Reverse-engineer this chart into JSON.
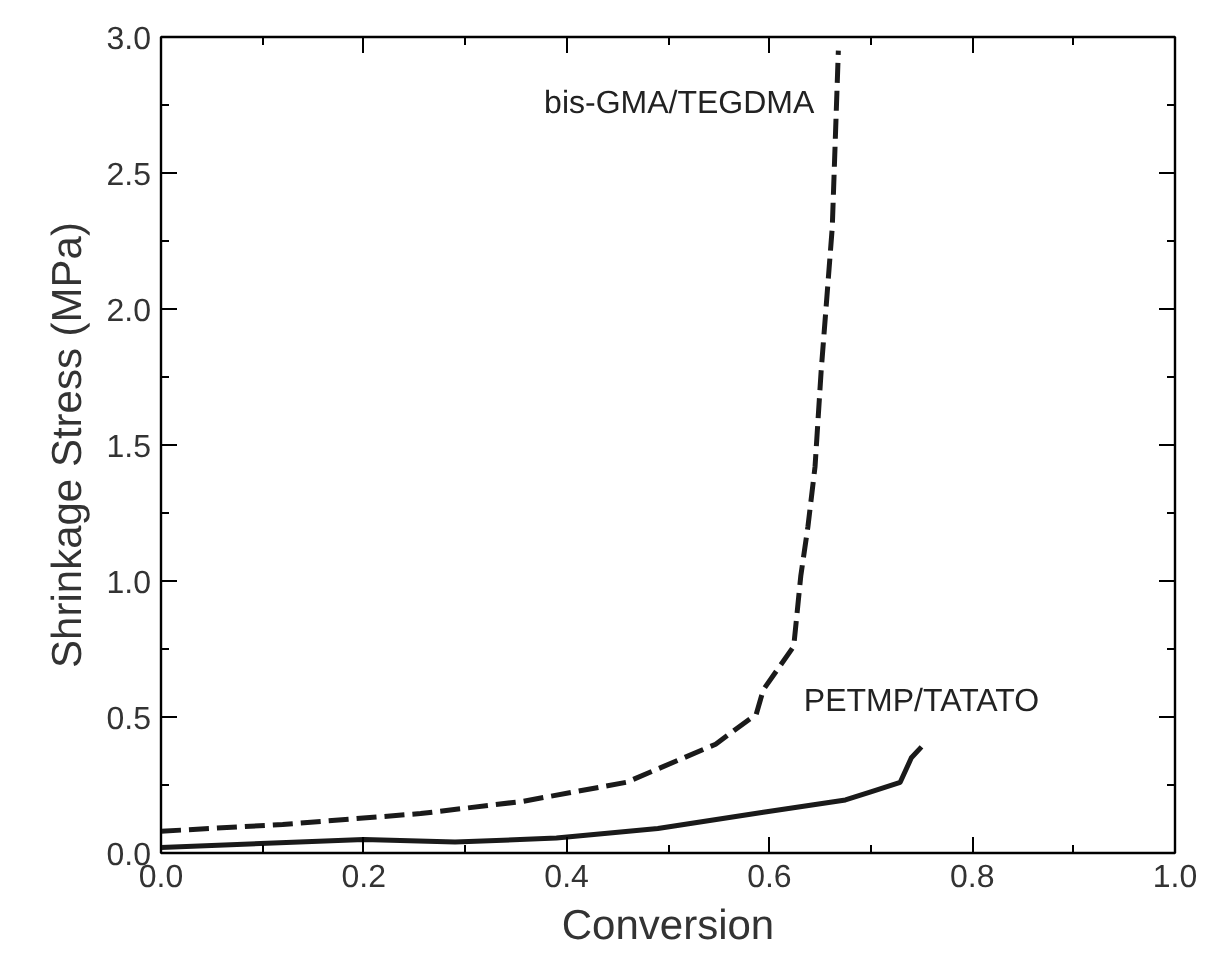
{
  "chart_data": {
    "type": "line",
    "xlabel": "Conversion",
    "ylabel": "Shrinkage Stress (MPa)",
    "xlim": [
      0,
      1
    ],
    "ylim": [
      0,
      3
    ],
    "xticks": [
      {
        "value": 0,
        "label": "0.0"
      },
      {
        "value": 0.2,
        "label": "0.2"
      },
      {
        "value": 0.4,
        "label": "0.4"
      },
      {
        "value": 0.6,
        "label": "0.6"
      },
      {
        "value": 0.8,
        "label": "0.8"
      },
      {
        "value": 1,
        "label": "1.0"
      }
    ],
    "yticks": [
      {
        "value": 0,
        "label": "0.0"
      },
      {
        "value": 0.5,
        "label": "0.5"
      },
      {
        "value": 1,
        "label": "1.0"
      },
      {
        "value": 1.5,
        "label": "1.5"
      },
      {
        "value": 2,
        "label": "2.0"
      },
      {
        "value": 2.5,
        "label": "2.5"
      },
      {
        "value": 3,
        "label": "3.0"
      }
    ],
    "grid": false,
    "legend": false,
    "series": [
      {
        "name": "bis-GMA/TEGDMA",
        "color": "#1a1a1a",
        "line_style": "dashed",
        "x": [
          0,
          0.12,
          0.256,
          0.357,
          0.459,
          0.547,
          0.587,
          0.594,
          0.624,
          0.631,
          0.638,
          0.645,
          0.651,
          0.662,
          0.668
        ],
        "values": [
          0.08,
          0.105,
          0.145,
          0.19,
          0.26,
          0.4,
          0.51,
          0.6,
          0.76,
          1.02,
          1.2,
          1.42,
          1.77,
          2.3,
          2.95
        ]
      },
      {
        "name": "PETMP/TATATO",
        "color": "#1a1a1a",
        "line_style": "solid",
        "x": [
          0,
          0.2,
          0.29,
          0.39,
          0.49,
          0.594,
          0.675,
          0.7,
          0.729,
          0.74,
          0.75
        ],
        "values": [
          0.02,
          0.05,
          0.04,
          0.055,
          0.09,
          0.15,
          0.195,
          0.225,
          0.26,
          0.35,
          0.39
        ]
      }
    ]
  }
}
